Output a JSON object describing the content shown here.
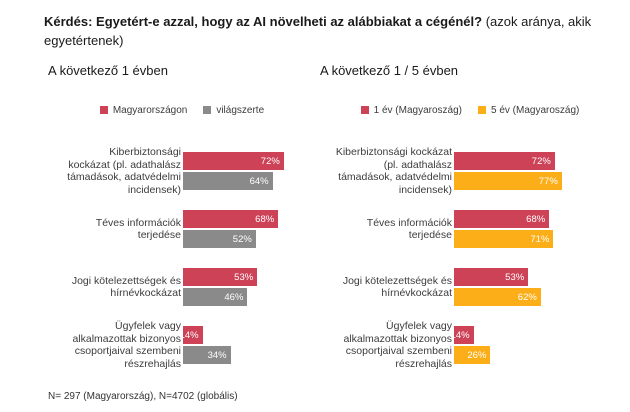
{
  "page": {
    "title_bold": "Kérdés: Egyetért-e azzal, hogy az AI növelheti az alábbiakat a cégénél?",
    "title_regular": "(azok aránya, akik egyetértenek)",
    "footnote": "N= 297 (Magyarország), N=4702 (globális)"
  },
  "colors": {
    "red": "#CE4257",
    "gray": "#8A8A8A",
    "yellow": "#FBAE17",
    "bar_value_text": "#FFFFFF",
    "body_text": "#3C3C3C"
  },
  "chart_data": [
    {
      "type": "bar",
      "orientation": "horizontal",
      "title": "A következő 1 évben",
      "categories": [
        "Kiberbiztonsági kockázat (pl. adathalász támadások, adatvédelmi incidensek)",
        "Téves információk terjedése",
        "Jogi kötelezettségek és hírnévkockázat",
        "Ügyfelek vagy alkalmazottak bizonyos csoportjaival szembeni részrehajlás"
      ],
      "series": [
        {
          "name": "Magyarországon",
          "color": "#CE4257",
          "values": [
            72,
            68,
            53,
            14
          ]
        },
        {
          "name": "világszerte",
          "color": "#8A8A8A",
          "values": [
            64,
            52,
            46,
            34
          ]
        }
      ],
      "value_suffix": "%",
      "xlim": [
        0,
        100
      ],
      "grid": false,
      "legend_position": "top",
      "data_labels": true
    },
    {
      "type": "bar",
      "orientation": "horizontal",
      "title": "A következő 1 / 5 évben",
      "categories": [
        "Kiberbiztonsági kockázat (pl. adathalász támadások, adatvédelmi incidensek)",
        "Téves információk terjedése",
        "Jogi kötelezettségek és hírnévkockázat",
        "Ügyfelek vagy alkalmazottak bizonyos csoportjaival szembeni részrehajlás"
      ],
      "series": [
        {
          "name": "1 év (Magyaroszág)",
          "color": "#CE4257",
          "values": [
            72,
            68,
            53,
            14
          ]
        },
        {
          "name": "5 év (Magyaroszág)",
          "color": "#FBAE17",
          "values": [
            77,
            71,
            62,
            26
          ]
        }
      ],
      "value_suffix": "%",
      "xlim": [
        0,
        100
      ],
      "grid": false,
      "legend_position": "top",
      "data_labels": true
    }
  ]
}
